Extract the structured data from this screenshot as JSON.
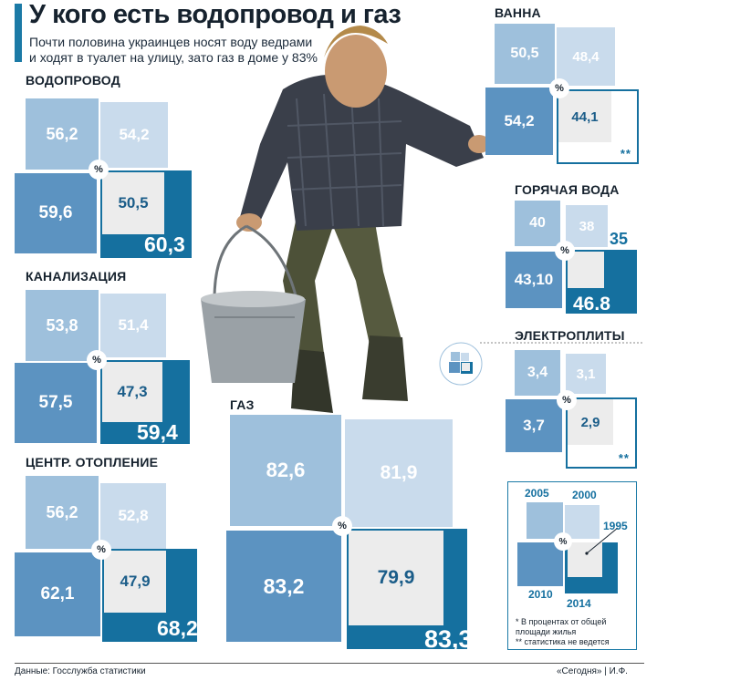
{
  "title": "У кого есть водопровод и газ",
  "subtitle_lines": [
    "Почти половина украинцев носят воду ведрами",
    "и ходят в туалет на улицу, зато газ в доме у 83%"
  ],
  "percent_sign": "%",
  "chart_data": {
    "type": "nested squares",
    "unit": "%",
    "years": [
      "2005",
      "2000",
      "1995",
      "2010",
      "2014"
    ],
    "panels": [
      {
        "name": "ВОДОПРОВОД",
        "2005": "56,2",
        "2000": "54,2",
        "1995": "50,5",
        "2010": "59,6",
        "2014": "60,3"
      },
      {
        "name": "КАНАЛИЗАЦИЯ",
        "2005": "53,8",
        "2000": "51,4",
        "1995": "47,3",
        "2010": "57,5",
        "2014": "59,4"
      },
      {
        "name": "ЦЕНТР. ОТОПЛЕНИЕ",
        "2005": "56,2",
        "2000": "52,8",
        "1995": "47,9",
        "2010": "62,1",
        "2014": "68,2"
      },
      {
        "name": "ГАЗ",
        "2005": "82,6",
        "2000": "81,9",
        "1995": "79,9",
        "2010": "83,2",
        "2014": "83,3"
      },
      {
        "name": "ВАННА",
        "2005": "50,5",
        "2000": "48,4",
        "1995": "44,1",
        "2010": "54,2",
        "2014": "**"
      },
      {
        "name": "ГОРЯЧАЯ ВОДА",
        "2005": "40",
        "2000": "38",
        "1995": "35",
        "2010": "43,10",
        "2014": "46.8"
      },
      {
        "name": "ЭЛЕКТРОПЛИТЫ",
        "2005": "3,4",
        "2000": "3,1",
        "1995": "2,9",
        "2010": "3,7",
        "2014": "**"
      }
    ]
  },
  "legend": {
    "notes": [
      "*  В процентах от общей",
      "    площади жилья",
      "** статистика не ведется"
    ]
  },
  "footer": {
    "source": "Данные: Госслужба статистики",
    "credit": "«Сегодня» | И.Ф."
  },
  "colors": {
    "2005": "#9ec0dc",
    "2000": "#c9dbec",
    "2010": "#5c93c1",
    "2014": "#15709f",
    "1995": "#ececec"
  }
}
